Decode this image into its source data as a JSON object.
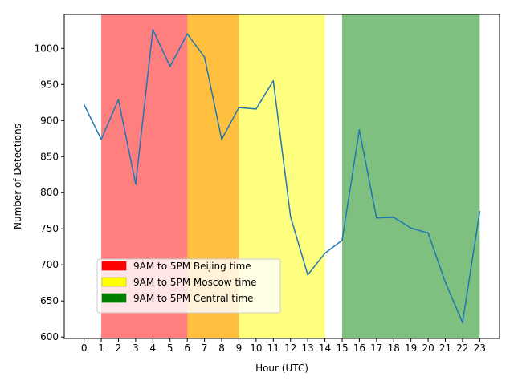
{
  "chart_data": {
    "type": "line",
    "title": "",
    "xlabel": "Hour (UTC)",
    "ylabel": "Number of Detections",
    "xlim": [
      -1.15,
      24.15
    ],
    "ylim": [
      598,
      1047
    ],
    "xticks": [
      0,
      1,
      2,
      3,
      4,
      5,
      6,
      7,
      8,
      9,
      10,
      11,
      12,
      13,
      14,
      15,
      16,
      17,
      18,
      19,
      20,
      21,
      22,
      23
    ],
    "yticks": [
      600,
      650,
      700,
      750,
      800,
      850,
      900,
      950,
      1000
    ],
    "grid": false,
    "legend_position": "lower-left",
    "series": [
      {
        "color": "#1f77b4",
        "x": [
          0,
          1,
          2,
          3,
          4,
          5,
          6,
          7,
          8,
          9,
          10,
          11,
          12,
          13,
          14,
          15,
          16,
          17,
          18,
          19,
          20,
          21,
          22,
          23
        ],
        "values": [
          922,
          874,
          929,
          812,
          1026,
          975,
          1020,
          988,
          874,
          918,
          916,
          955,
          767,
          686,
          716,
          734,
          887,
          765,
          766,
          751,
          744,
          676,
          620,
          774
        ]
      }
    ],
    "bands": [
      {
        "label": "9AM to 5PM Beijing time",
        "x_start": 1,
        "x_end": 9,
        "color": "#ff0000",
        "alpha": 0.5
      },
      {
        "label": "9AM to 5PM Moscow time",
        "x_start": 6,
        "x_end": 14,
        "color": "#ffff00",
        "alpha": 0.5
      },
      {
        "label": "9AM to 5PM Central time",
        "x_start": 15,
        "x_end": 23,
        "color": "#008000",
        "alpha": 0.5
      }
    ]
  }
}
